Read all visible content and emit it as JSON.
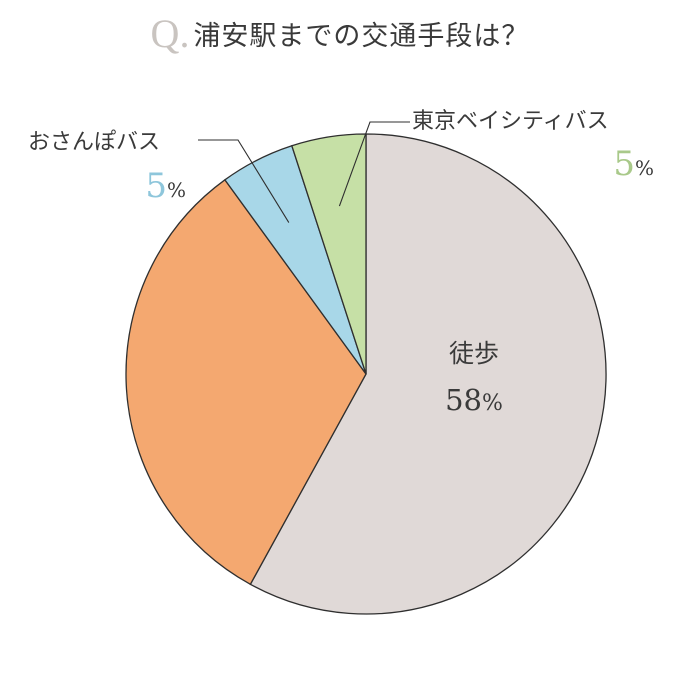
{
  "title": {
    "q": "Q",
    "dot": ".",
    "text": "浦安駅までの交通手段は？"
  },
  "chart_data": {
    "type": "pie",
    "start_angle_deg": 0,
    "direction": "clockwise",
    "slices": [
      {
        "label": "徒歩",
        "value": 58,
        "display": "58",
        "pct_symbol": "%",
        "color": "#e0d9d7",
        "label_inside": true
      },
      {
        "label": "",
        "value": 32,
        "display": "",
        "pct_symbol": "",
        "color": "#f4a870",
        "label_inside": false
      },
      {
        "label": "おさんぽバス",
        "value": 5,
        "display": "5",
        "pct_symbol": "%",
        "color": "#a8d7e8",
        "value_color": "#8ec6db",
        "label_inside": false
      },
      {
        "label": "東京ベイシティバス",
        "value": 5,
        "display": "5",
        "pct_symbol": "%",
        "color": "#c6e0a6",
        "value_color": "#a9c98a",
        "label_inside": false
      }
    ]
  },
  "colors": {
    "stroke": "#2f2f2f",
    "title_q": "#c9c4c0"
  }
}
